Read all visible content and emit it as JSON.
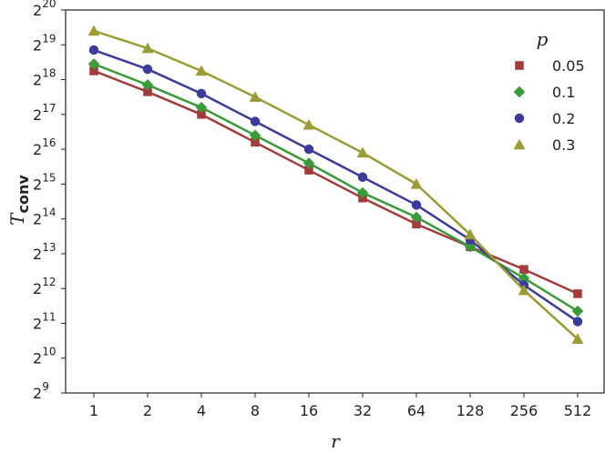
{
  "chart_data": {
    "type": "line",
    "title": "",
    "xlabel": "r",
    "ylabel_main": "T",
    "ylabel_sub": "conv",
    "x_scale": "log2",
    "y_scale": "log2",
    "x": [
      1,
      2,
      4,
      8,
      16,
      32,
      64,
      128,
      256,
      512
    ],
    "x_tick_labels": [
      "1",
      "2",
      "4",
      "8",
      "16",
      "32",
      "64",
      "128",
      "256",
      "512"
    ],
    "y_tick_exponents": [
      9,
      10,
      11,
      12,
      13,
      14,
      15,
      16,
      17,
      18,
      19,
      20
    ],
    "y_tick_base": "2",
    "ylim_log2": [
      9,
      20
    ],
    "grid": false,
    "legend": {
      "title": "p",
      "placement": "top-right"
    },
    "series": [
      {
        "name": "0.05",
        "marker": "square",
        "color": "#a33b3b",
        "log2_values": [
          18.25,
          17.65,
          17.0,
          16.2,
          15.4,
          14.6,
          13.85,
          13.2,
          12.55,
          11.85
        ]
      },
      {
        "name": "0.1",
        "marker": "diamond",
        "color": "#3a9b3a",
        "log2_values": [
          18.45,
          17.85,
          17.2,
          16.4,
          15.6,
          14.75,
          14.05,
          13.2,
          12.3,
          11.35
        ]
      },
      {
        "name": "0.2",
        "marker": "circle",
        "color": "#3b3b9b",
        "log2_values": [
          18.85,
          18.3,
          17.6,
          16.8,
          16.0,
          15.2,
          14.4,
          13.4,
          12.1,
          11.05
        ]
      },
      {
        "name": "0.3",
        "marker": "triangle",
        "color": "#9b9b33",
        "log2_values": [
          19.4,
          18.9,
          18.25,
          17.5,
          16.7,
          15.9,
          15.0,
          13.55,
          11.95,
          10.55
        ]
      }
    ]
  }
}
